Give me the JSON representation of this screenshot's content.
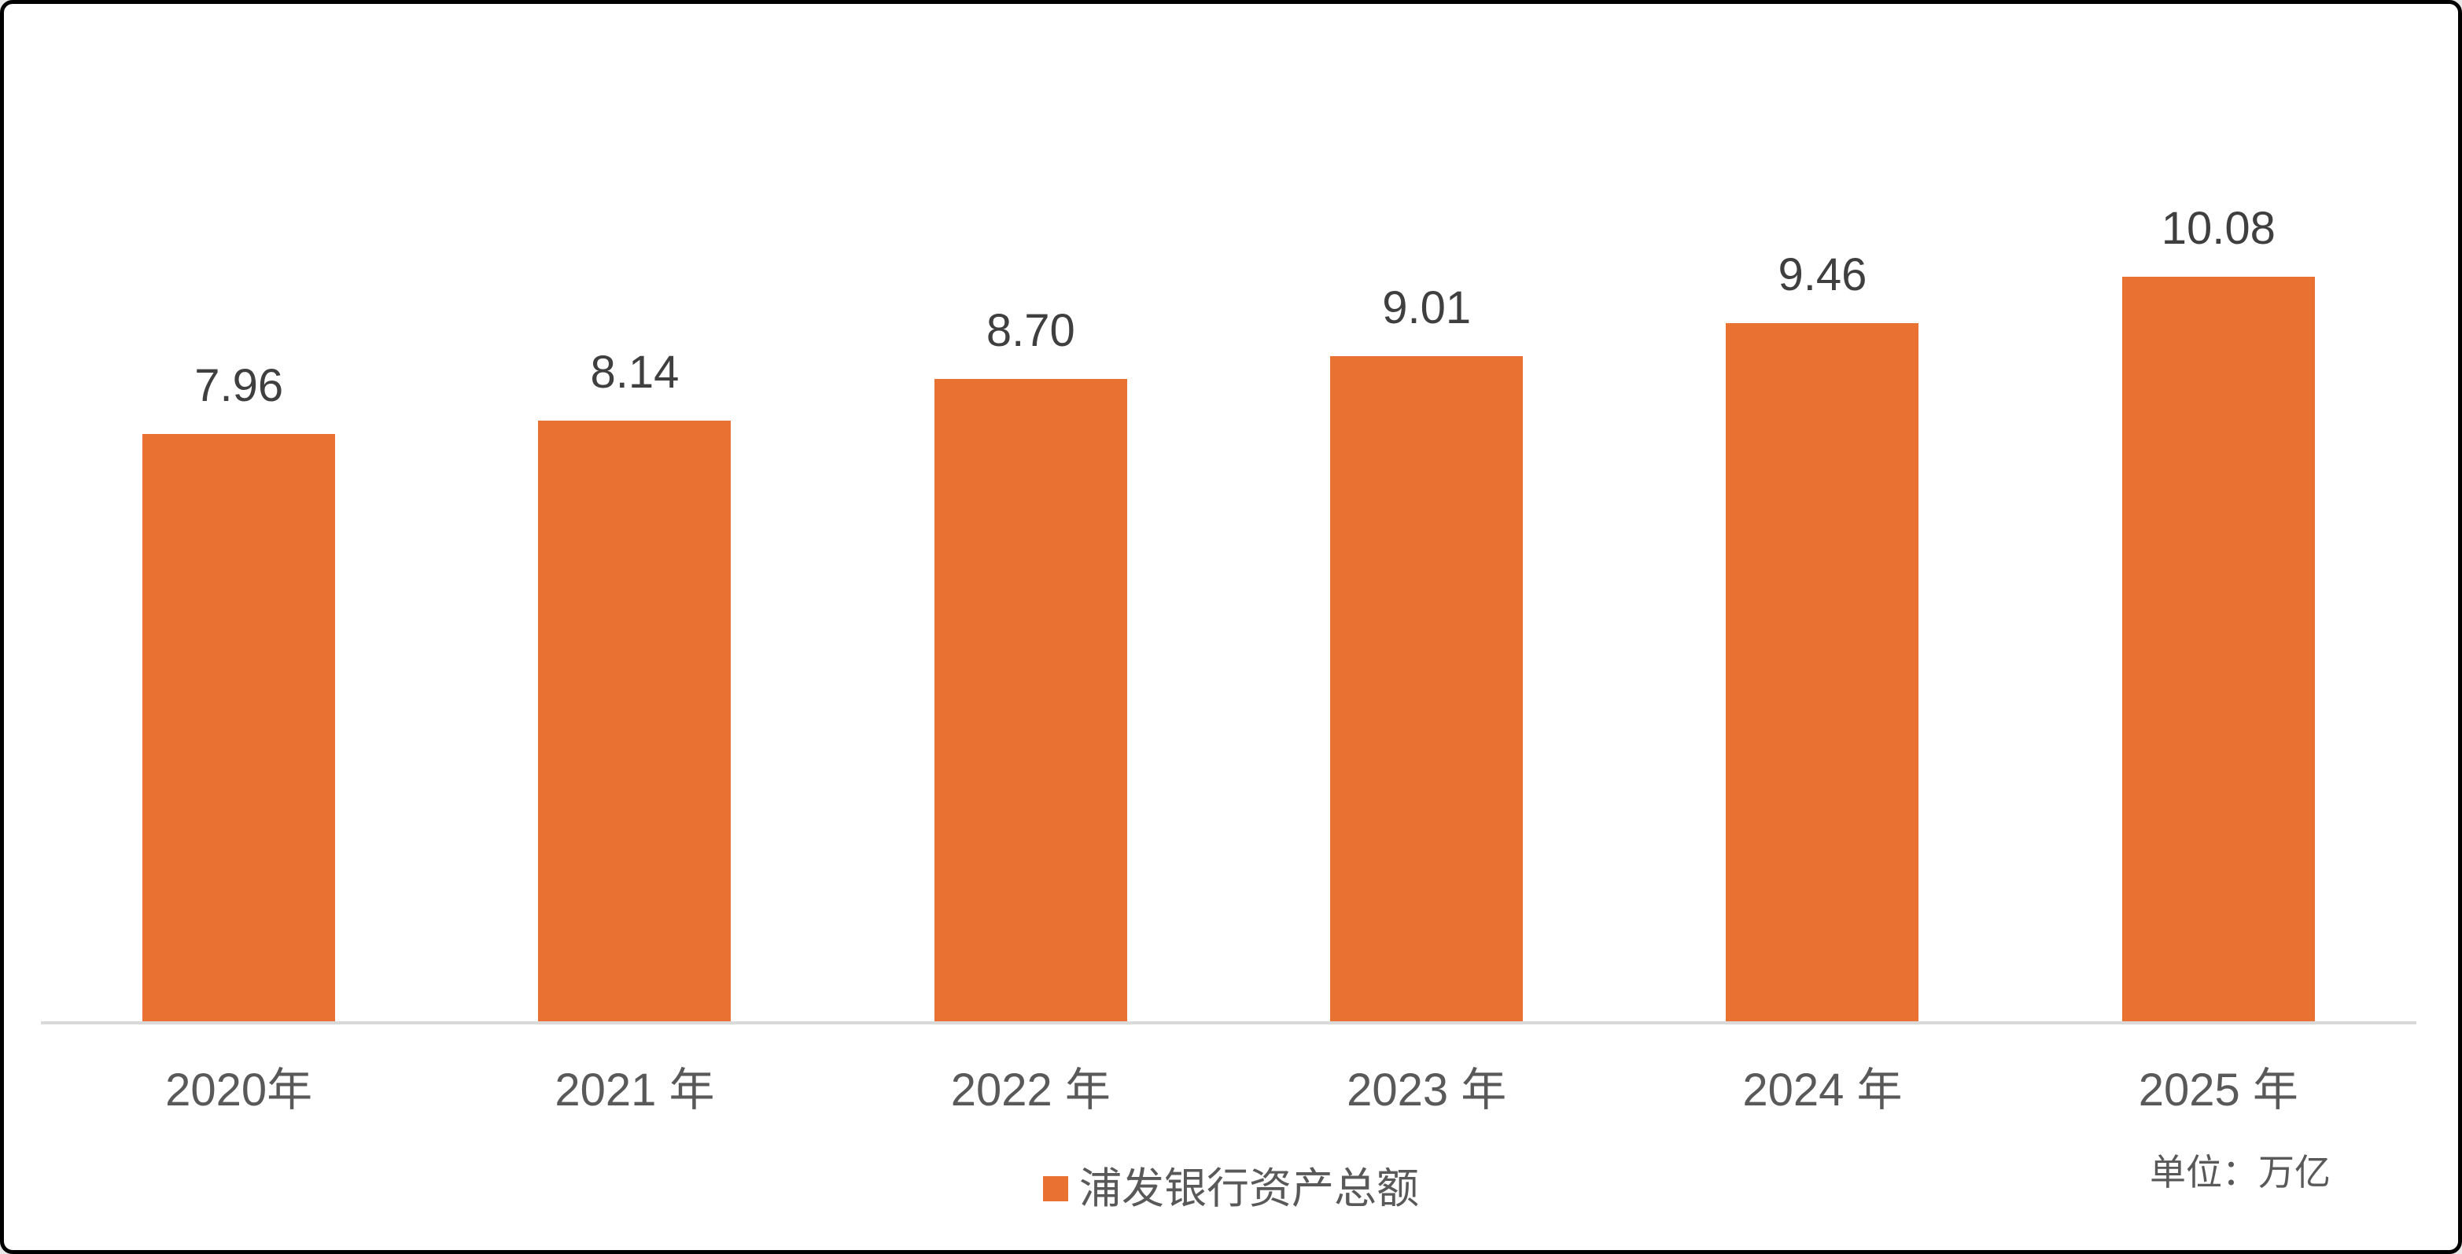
{
  "chart_data": {
    "type": "bar",
    "title": "",
    "xlabel": "",
    "ylabel": "",
    "categories": [
      "2020年",
      "2021 年",
      "2022 年",
      "2023 年",
      "2024 年",
      "2025 年"
    ],
    "values": [
      7.96,
      8.14,
      8.7,
      9.01,
      9.46,
      10.08
    ],
    "value_labels": [
      "7.96",
      "8.14",
      "8.70",
      "9.01",
      "9.46",
      "10.08"
    ],
    "series": [
      {
        "name": "浦发银行资产总额",
        "values": [
          7.96,
          8.14,
          8.7,
          9.01,
          9.46,
          10.08
        ]
      }
    ],
    "unit_note": "单位：万亿",
    "ylim": [
      0,
      10.8
    ],
    "grid": false,
    "legend_position": "bottom",
    "legend_marker": "square-swatch",
    "colors": {
      "bar": "#E97132",
      "value_label_text": "#3F3F3F",
      "axis_text": "#595959",
      "axis_line": "#D9D9D9",
      "background": "#FFFFFF",
      "frame_border": "#000000"
    }
  }
}
